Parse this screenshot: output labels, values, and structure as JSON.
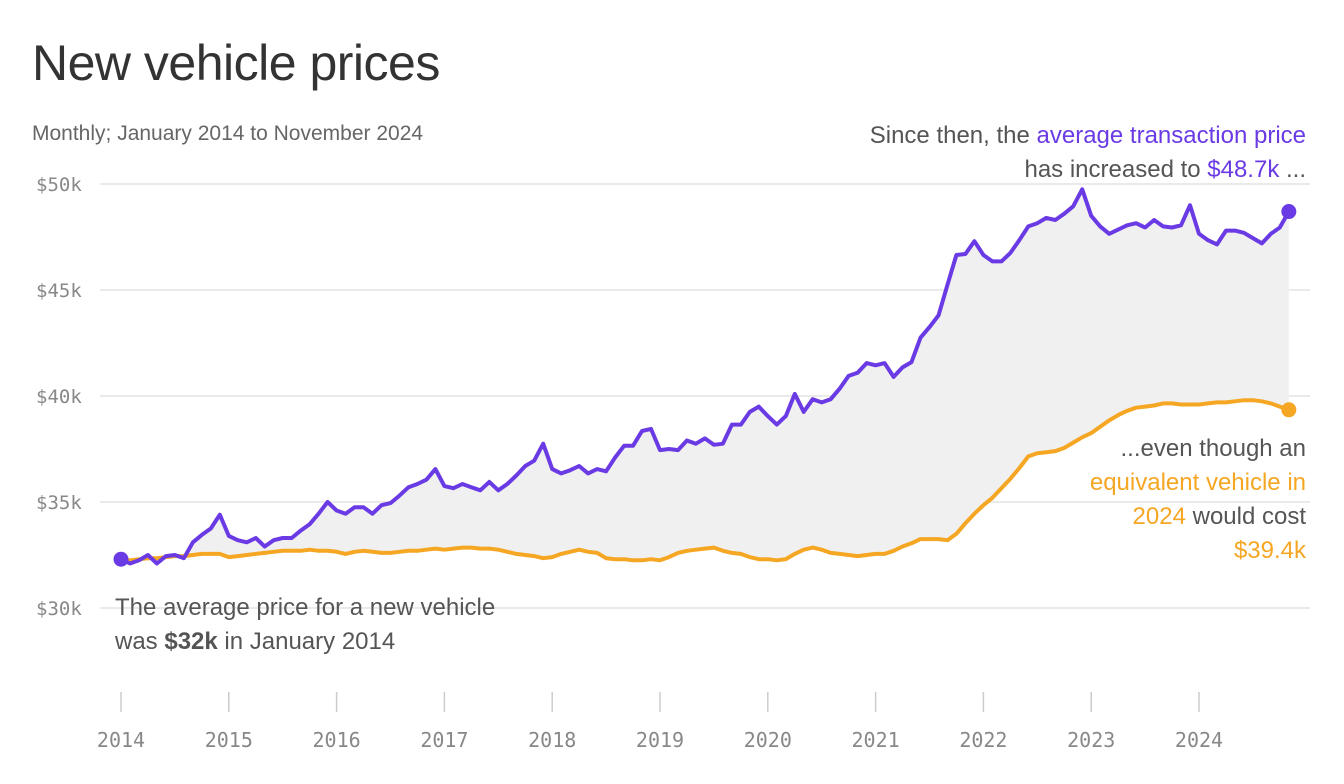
{
  "header": {
    "title": "New vehicle prices",
    "subtitle": "Monthly; January 2014 to November 2024"
  },
  "annotations": {
    "top": {
      "line1_prefix": "Since then, the ",
      "line1_highlight": "average transaction price",
      "line2_prefix": "has increased to ",
      "line2_highlight": "$48.7k",
      "line2_suffix": " ..."
    },
    "middle": {
      "line1": "...even though an",
      "line2_highlight": "equivalent vehicle in",
      "line3_highlight": "2024",
      "line3_suffix": " would cost",
      "line4_highlight": "$39.4k"
    },
    "bottom": {
      "line1": "The average price for a new vehicle",
      "line2_prefix": "was ",
      "line2_bold": "$32k",
      "line2_suffix": " in January 2014"
    }
  },
  "colors": {
    "transaction": "#6a3be4",
    "equivalent": "#f5a623",
    "gap_fill": "#f0f0f0",
    "grid": "#e3e3e3"
  },
  "chart_data": {
    "type": "line",
    "x_start": "2014-01",
    "x_end": "2024-11",
    "frequency": "monthly",
    "ylim": [
      30000,
      50000
    ],
    "y_ticks": [
      {
        "value": 30000,
        "label": "$30k"
      },
      {
        "value": 35000,
        "label": "$35k"
      },
      {
        "value": 40000,
        "label": "$40k"
      },
      {
        "value": 45000,
        "label": "$45k"
      },
      {
        "value": 50000,
        "label": "$50k"
      }
    ],
    "x_ticks": [
      "2014",
      "2015",
      "2016",
      "2017",
      "2018",
      "2019",
      "2020",
      "2021",
      "2022",
      "2023",
      "2024"
    ],
    "grid": "horizontal",
    "fill_between_series": true,
    "series": [
      {
        "key": "transaction",
        "values": [
          32300,
          32100,
          32250,
          32500,
          32100,
          32450,
          32500,
          32350,
          33100,
          33450,
          33750,
          34400,
          33400,
          33200,
          33100,
          33300,
          32900,
          33200,
          33300,
          33300,
          33650,
          33950,
          34450,
          35000,
          34600,
          34450,
          34750,
          34750,
          34450,
          34850,
          34950,
          35300,
          35700,
          35850,
          36050,
          36550,
          35750,
          35650,
          35850,
          35700,
          35550,
          35950,
          35550,
          35850,
          36250,
          36700,
          36950,
          37750,
          36550,
          36350,
          36500,
          36700,
          36350,
          36550,
          36450,
          37100,
          37650,
          37650,
          38350,
          38450,
          37450,
          37500,
          37450,
          37900,
          37750,
          38000,
          37700,
          37750,
          38650,
          38650,
          39250,
          39500,
          39050,
          38650,
          39050,
          40100,
          39250,
          39850,
          39700,
          39850,
          40350,
          40950,
          41100,
          41550,
          41450,
          41550,
          40900,
          41350,
          41600,
          42750,
          43250,
          43800,
          45250,
          46650,
          46700,
          47300,
          46650,
          46350,
          46350,
          46750,
          47350,
          48000,
          48150,
          48400,
          48300,
          48600,
          48950,
          49750,
          48500,
          48000,
          47650,
          47850,
          48050,
          48150,
          47950,
          48300,
          48000,
          47950,
          48050,
          49000,
          47650,
          47350,
          47150,
          47800,
          47800,
          47700,
          47450,
          47200,
          47650,
          47950,
          48700
        ]
      },
      {
        "key": "equivalent",
        "values": [
          32250,
          32250,
          32300,
          32350,
          32350,
          32400,
          32450,
          32450,
          32500,
          32550,
          32550,
          32550,
          32400,
          32450,
          32500,
          32550,
          32600,
          32650,
          32700,
          32700,
          32700,
          32750,
          32700,
          32700,
          32650,
          32550,
          32650,
          32700,
          32650,
          32600,
          32600,
          32650,
          32700,
          32700,
          32750,
          32800,
          32750,
          32800,
          32850,
          32850,
          32800,
          32800,
          32750,
          32650,
          32550,
          32500,
          32450,
          32350,
          32400,
          32550,
          32650,
          32750,
          32650,
          32600,
          32350,
          32300,
          32300,
          32250,
          32250,
          32300,
          32250,
          32400,
          32600,
          32700,
          32750,
          32800,
          32850,
          32700,
          32600,
          32550,
          32400,
          32300,
          32300,
          32250,
          32300,
          32550,
          32750,
          32850,
          32750,
          32600,
          32550,
          32500,
          32450,
          32500,
          32550,
          32550,
          32700,
          32900,
          33050,
          33250,
          33250,
          33250,
          33200,
          33500,
          34000,
          34450,
          34850,
          35200,
          35650,
          36100,
          36600,
          37150,
          37300,
          37350,
          37400,
          37550,
          37800,
          38050,
          38250,
          38550,
          38850,
          39100,
          39300,
          39450,
          39500,
          39550,
          39650,
          39650,
          39600,
          39600,
          39600,
          39650,
          39700,
          39700,
          39750,
          39800,
          39800,
          39750,
          39650,
          39500,
          39350
        ]
      }
    ]
  }
}
